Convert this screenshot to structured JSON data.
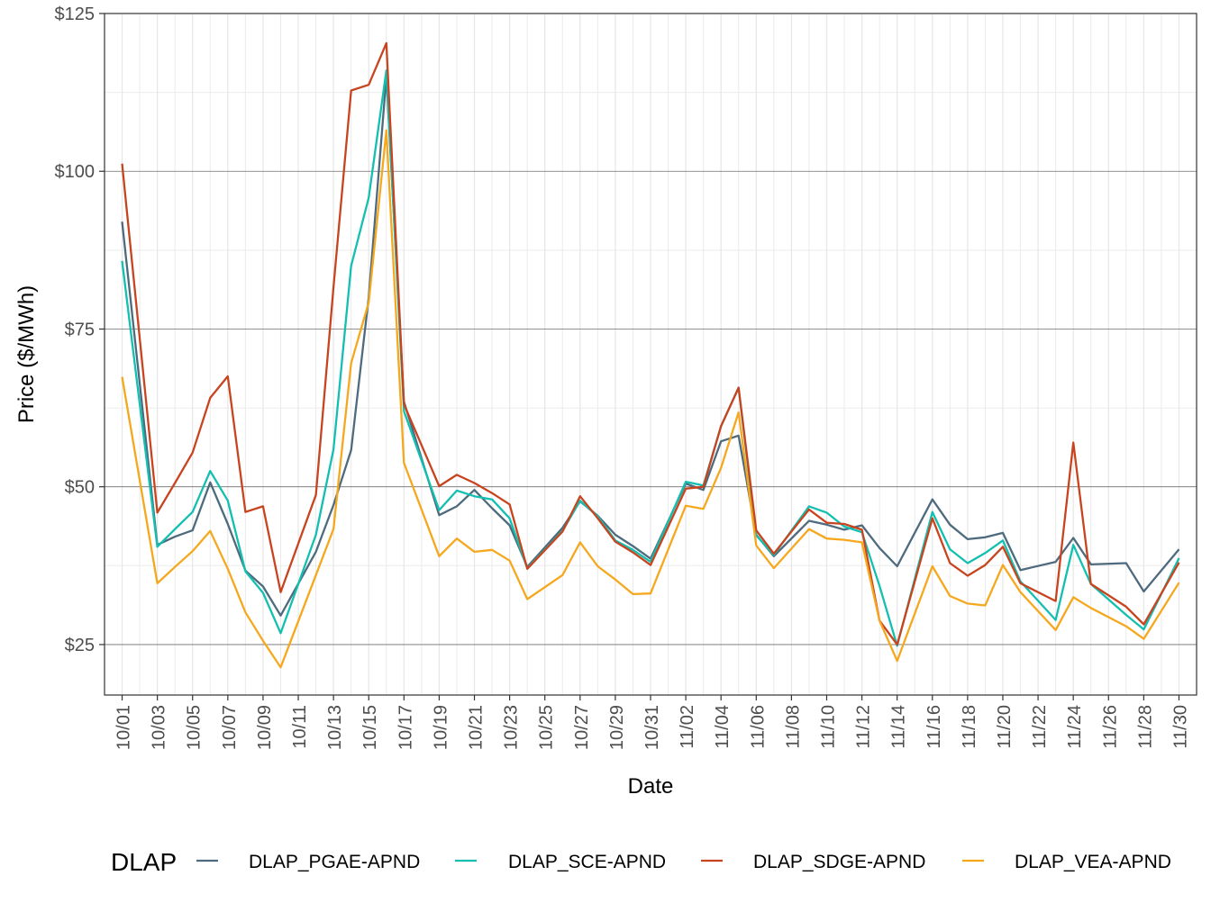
{
  "chart_data": {
    "type": "line",
    "xlabel": "Date",
    "ylabel": "Price ($/MWh)",
    "ylim": [
      17,
      125
    ],
    "yticks": [
      25,
      50,
      75,
      100,
      125
    ],
    "ytick_labels": [
      "$25",
      "$50",
      "$75",
      "$100",
      "$125"
    ],
    "xtick_labels": [
      "10/01",
      "10/03",
      "10/05",
      "10/07",
      "10/09",
      "10/11",
      "10/13",
      "10/15",
      "10/17",
      "10/19",
      "10/21",
      "10/23",
      "10/25",
      "10/27",
      "10/29",
      "10/31",
      "11/02",
      "11/04",
      "11/06",
      "11/08",
      "11/10",
      "11/12",
      "11/14",
      "11/16",
      "11/18",
      "11/20",
      "11/22",
      "11/24",
      "11/26",
      "11/28",
      "11/30"
    ],
    "grid": true,
    "legend": {
      "title": "DLAP",
      "position": "bottom"
    },
    "x": [
      "10/01",
      "10/03",
      "10/04",
      "10/05",
      "10/06",
      "10/07",
      "10/08",
      "10/09",
      "10/10",
      "10/12",
      "10/13",
      "10/14",
      "10/15",
      "10/16",
      "10/17",
      "10/19",
      "10/20",
      "10/21",
      "10/22",
      "10/23",
      "10/24",
      "10/26",
      "10/27",
      "10/28",
      "10/29",
      "10/30",
      "10/31",
      "11/02",
      "11/03",
      "11/04",
      "11/05",
      "11/06",
      "11/07",
      "11/09",
      "11/10",
      "11/11",
      "11/12",
      "11/13",
      "11/14",
      "11/16",
      "11/17",
      "11/18",
      "11/19",
      "11/20",
      "11/21",
      "11/23",
      "11/24",
      "11/25",
      "11/27",
      "11/28",
      "11/30"
    ],
    "series": [
      {
        "name": "DLAP_PGAE-APND",
        "color": "#4e6b7e",
        "values": [
          92.0,
          40.8,
          42.1,
          43.1,
          50.7,
          44.1,
          36.7,
          34.2,
          29.6,
          39.7,
          47.1,
          55.8,
          80.0,
          115.0,
          63.5,
          45.5,
          46.9,
          49.5,
          46.6,
          43.9,
          37.3,
          43.5,
          47.7,
          45.4,
          42.4,
          40.6,
          38.6,
          50.5,
          49.5,
          57.2,
          58.1,
          42.4,
          39.0,
          44.6,
          44.0,
          43.2,
          43.9,
          40.3,
          37.4,
          48.0,
          44.0,
          41.7,
          42.0,
          42.7,
          36.8,
          38.1,
          41.9,
          37.7,
          37.9,
          33.4,
          40.1
        ]
      },
      {
        "name": "DLAP_SCE-APND",
        "color": "#13bfb0",
        "values": [
          85.8,
          40.5,
          43.3,
          46.0,
          52.5,
          47.8,
          36.6,
          33.2,
          26.8,
          42.4,
          55.9,
          85.0,
          95.8,
          116.0,
          62.0,
          46.3,
          49.4,
          48.5,
          48.0,
          45.0,
          37.1,
          43.0,
          47.8,
          45.3,
          41.5,
          40.0,
          38.1,
          50.8,
          50.2,
          59.6,
          65.7,
          42.3,
          39.2,
          46.9,
          45.9,
          43.7,
          42.8,
          34.3,
          24.8,
          46.0,
          40.1,
          37.9,
          39.5,
          41.5,
          35.0,
          28.9,
          40.8,
          34.6,
          29.7,
          27.4,
          38.7
        ]
      },
      {
        "name": "DLAP_SDGE-APND",
        "color": "#c8441f",
        "values": [
          101.2,
          45.9,
          50.6,
          55.4,
          64.1,
          67.5,
          46.0,
          46.9,
          33.3,
          48.7,
          81.6,
          112.8,
          113.7,
          120.3,
          63.1,
          50.1,
          51.9,
          50.6,
          49.0,
          47.2,
          37.0,
          42.9,
          48.5,
          45.0,
          41.3,
          39.6,
          37.6,
          49.7,
          50.0,
          59.6,
          65.7,
          43.1,
          39.4,
          46.4,
          44.3,
          44.1,
          43.2,
          28.8,
          25.0,
          45.0,
          37.9,
          35.9,
          37.6,
          40.5,
          34.7,
          31.9,
          57.0,
          34.6,
          31.0,
          28.2,
          38.0
        ]
      },
      {
        "name": "DLAP_VEA-APND",
        "color": "#f5a81d",
        "values": [
          67.4,
          34.7,
          37.3,
          39.8,
          43.0,
          37.0,
          30.1,
          25.6,
          21.4,
          36.0,
          43.3,
          69.6,
          79.2,
          106.5,
          53.8,
          39.0,
          41.8,
          39.7,
          40.0,
          38.3,
          32.2,
          36.0,
          41.2,
          37.4,
          35.3,
          33.0,
          33.1,
          47.0,
          46.5,
          53.0,
          61.8,
          40.7,
          37.1,
          43.3,
          41.8,
          41.6,
          41.2,
          28.8,
          22.4,
          37.4,
          32.7,
          31.5,
          31.2,
          37.6,
          33.3,
          27.3,
          32.5,
          30.8,
          27.9,
          25.9,
          34.8
        ]
      }
    ]
  }
}
